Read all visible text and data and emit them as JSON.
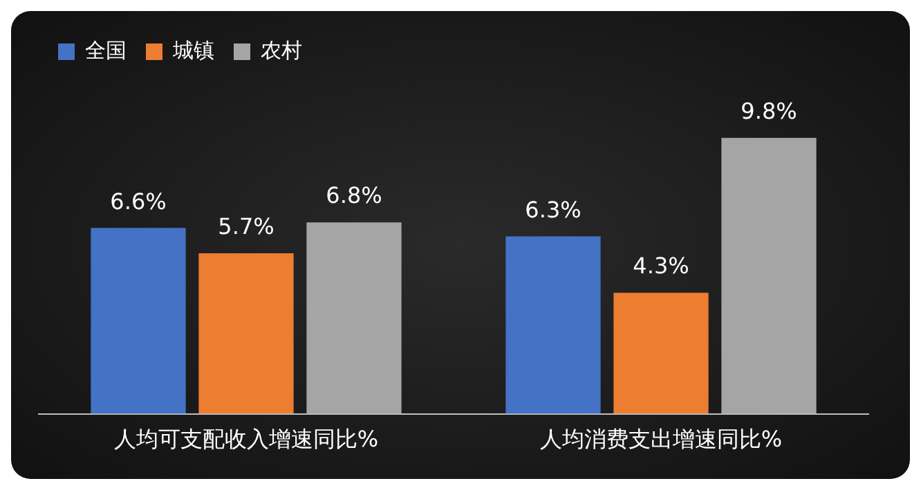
{
  "chart_data": {
    "type": "bar",
    "categories": [
      "人均可支配收入增速同比%",
      "人均消费支出增速同比%"
    ],
    "series": [
      {
        "name": "全国",
        "color": "#4472c4",
        "values": [
          6.6,
          6.3
        ],
        "value_labels": [
          "6.6%",
          "6.3%"
        ]
      },
      {
        "name": "城镇",
        "color": "#ed7d31",
        "values": [
          5.7,
          4.3
        ],
        "value_labels": [
          "5.7%",
          "4.3%"
        ]
      },
      {
        "name": "农村",
        "color": "#a5a5a5",
        "values": [
          6.8,
          9.8
        ],
        "value_labels": [
          "6.8%",
          "9.8%"
        ]
      }
    ],
    "legend": "top left"
  }
}
